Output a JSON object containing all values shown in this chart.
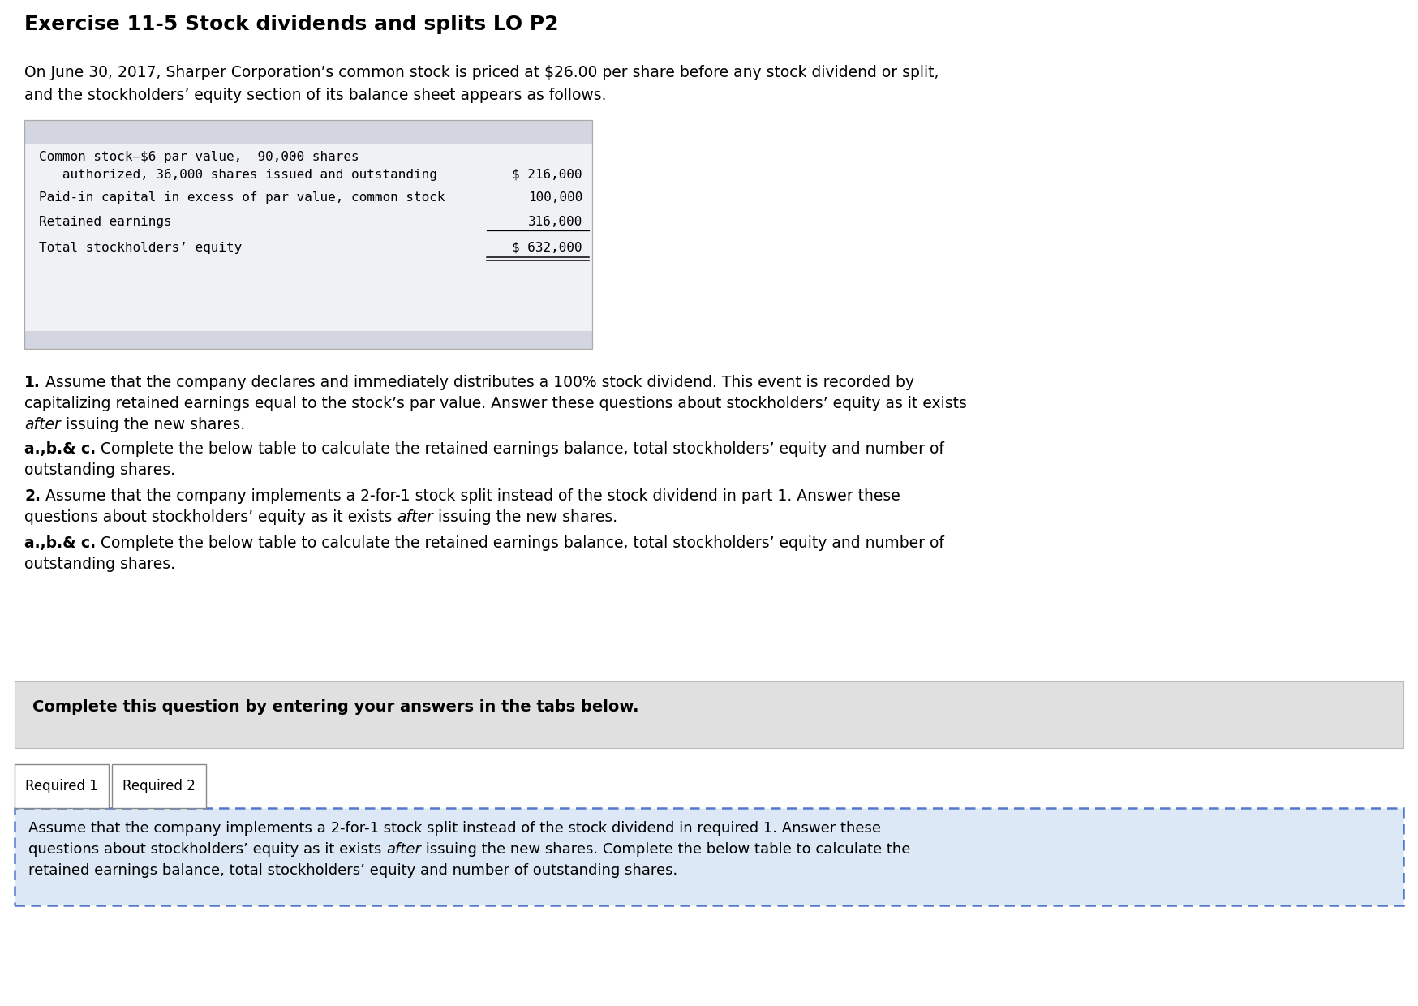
{
  "title": "Exercise 11-5 Stock dividends and splits LO P2",
  "bg_color": "#ffffff",
  "intro_line1": "On June 30, 2017, Sharper Corporation’s common stock is priced at $26.00 per share before any stock dividend or split,",
  "intro_line2": "and the stockholders’ equity section of its balance sheet appears as follows.",
  "table_header_bg": "#d3d6e0",
  "table_body_bg": "#f0f1f5",
  "table_footer_bg": "#d3d6e0",
  "table_border_color": "#aaaaaa",
  "mono_row1_line1": "Common stock–$6 par value,  90,000 shares",
  "mono_row1_line2": "   authorized, 36,000 shares issued and outstanding",
  "mono_row1_value": "$ 216,000",
  "mono_row2_label": "Paid-in capital in excess of par value, common stock",
  "mono_row2_value": "100,000",
  "mono_row3_label": "Retained earnings",
  "mono_row3_value": "316,000",
  "mono_row4_label": "Total stockholders’ equity",
  "mono_row4_value": "$ 632,000",
  "p1_bold": "1.",
  "p1_text": " Assume that the company declares and immediately distributes a 100% stock dividend. This event is recorded by capitalizing retained earnings equal to the stock’s par value. Answer these questions about stockholders’ equity as it exists ",
  "p1_italic": "after",
  "p1_text2": " issuing the new shares.",
  "p2_bold": "a.,b.& c.",
  "p2_text": " Complete the below table to calculate the retained earnings balance, total stockholders’ equity and number of outstanding shares.",
  "p3_bold": "2.",
  "p3_text": " Assume that the company implements a 2-for-1 stock split instead of the stock dividend in part 1. Answer these questions about stockholders’ equity as it exists ",
  "p3_italic": "after",
  "p3_text2": " issuing the new shares.",
  "p4_bold": "a.,b.& c.",
  "p4_text": " Complete the below table to calculate the retained earnings balance, total stockholders’ equity and number of outstanding shares.",
  "gray_box_text": "Complete this question by entering your answers in the tabs below.",
  "gray_box_bg": "#e0e0e0",
  "tab1_text": "Required 1",
  "tab2_text": "Required 2",
  "dotted_box_bg": "#dce8f5",
  "dotted_border_color": "#5577cc",
  "dotted_line1": "Assume that the company implements a 2-for-1 stock split instead of the stock dividend in required 1. Answer these",
  "dotted_line2a": "questions about stockholders’ equity as it exists ",
  "dotted_line2b": "after",
  "dotted_line2c": " issuing the new shares. Complete the below table to calculate the",
  "dotted_line3": "retained earnings balance, total stockholders’ equity and number of outstanding shares."
}
